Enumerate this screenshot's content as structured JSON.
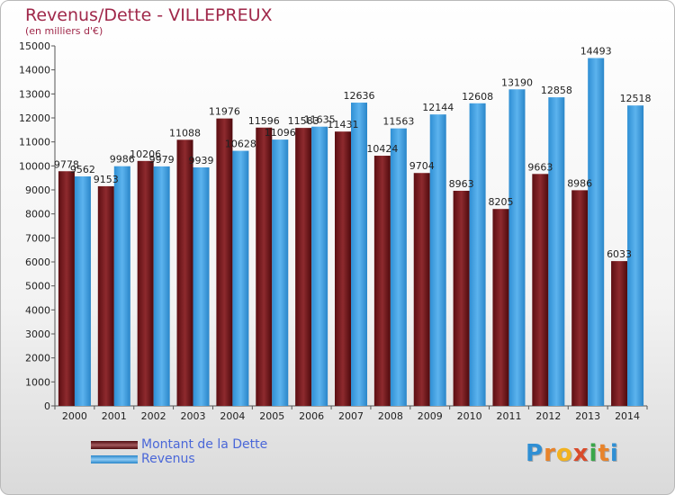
{
  "title": "Revenus/Dette - VILLEPREUX",
  "subtitle": "(en milliers d'€)",
  "colors": {
    "dette": "#7a1a1e",
    "revenus": "#3d9ee0",
    "title": "#a0284a",
    "legend_text": "#4a67d8"
  },
  "legend": {
    "position": "bottom-left",
    "items": [
      "Montant de la Dette",
      "Revenus"
    ]
  },
  "logo": {
    "text": "Proxiti",
    "letters": [
      "P",
      "r",
      "o",
      "x",
      "i",
      "t",
      "i"
    ]
  },
  "chart_data": {
    "type": "bar",
    "title": "Revenus/Dette - VILLEPREUX",
    "subtitle": "(en milliers d'€)",
    "xlabel": "",
    "ylabel": "",
    "ylim": [
      0,
      15000
    ],
    "yticks": [
      0,
      1000,
      2000,
      3000,
      4000,
      5000,
      6000,
      7000,
      8000,
      9000,
      10000,
      11000,
      12000,
      13000,
      14000,
      15000
    ],
    "grid": false,
    "categories": [
      "2000",
      "2001",
      "2002",
      "2003",
      "2004",
      "2005",
      "2006",
      "2007",
      "2008",
      "2009",
      "2010",
      "2011",
      "2012",
      "2013",
      "2014"
    ],
    "series": [
      {
        "name": "Montant de la Dette",
        "values": [
          9778,
          9153,
          10206,
          11088,
          11976,
          11596,
          11583,
          11431,
          10424,
          9704,
          8963,
          8205,
          9663,
          8986,
          6033
        ],
        "labels": [
          "9778",
          "9153",
          "10206",
          "11088",
          "11976",
          "11596",
          "11583",
          "11431",
          "10424",
          "9704",
          "8963",
          "8205",
          "9663",
          "8986",
          "6033"
        ]
      },
      {
        "name": "Revenus",
        "values": [
          9562,
          9986,
          9979,
          9939,
          10628,
          11096,
          11635,
          12636,
          11563,
          12144,
          12608,
          13190,
          12858,
          14493,
          12518
        ],
        "labels": [
          "9562",
          "9986",
          "9979",
          "9939",
          "10628",
          "11096",
          "11635",
          "12636",
          "11563",
          "12144",
          "12608",
          "13190",
          "12858",
          "14493",
          "12518"
        ]
      }
    ]
  }
}
